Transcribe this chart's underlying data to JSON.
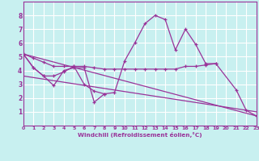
{
  "bg_color": "#c8f0f0",
  "grid_color": "#ffffff",
  "line_color": "#993399",
  "xlabel": "Windchill (Refroidissement éolien,°C)",
  "xlim": [
    0,
    23
  ],
  "ylim": [
    0,
    9
  ],
  "xticks": [
    0,
    1,
    2,
    3,
    4,
    5,
    6,
    7,
    8,
    9,
    10,
    11,
    12,
    13,
    14,
    15,
    16,
    17,
    18,
    19,
    20,
    21,
    22,
    23
  ],
  "yticks": [
    1,
    2,
    3,
    4,
    5,
    6,
    7,
    8
  ],
  "series": [
    {
      "x": [
        0,
        1,
        2,
        3,
        4,
        5,
        6,
        7,
        8,
        9,
        10,
        11,
        12,
        13,
        14,
        15,
        16,
        17,
        18,
        19,
        21,
        22,
        23
      ],
      "y": [
        5.2,
        4.2,
        3.6,
        2.9,
        4.0,
        4.2,
        4.2,
        1.7,
        2.3,
        2.4,
        4.7,
        6.0,
        7.4,
        8.0,
        7.7,
        5.5,
        7.0,
        5.9,
        4.5,
        4.5,
        2.6,
        1.1,
        0.7
      ],
      "markers": true
    },
    {
      "x": [
        0,
        1,
        2,
        3,
        4,
        5,
        6,
        7,
        8
      ],
      "y": [
        5.2,
        4.2,
        3.6,
        3.6,
        3.9,
        4.3,
        3.0,
        2.5,
        2.3
      ],
      "markers": true
    },
    {
      "x": [
        0,
        1,
        2,
        3,
        4,
        5,
        6,
        7,
        8,
        9,
        10,
        11,
        12,
        13,
        14,
        15,
        16,
        17,
        18,
        19
      ],
      "y": [
        5.2,
        4.9,
        4.6,
        4.3,
        4.3,
        4.3,
        4.3,
        4.2,
        4.1,
        4.1,
        4.1,
        4.1,
        4.1,
        4.1,
        4.1,
        4.1,
        4.3,
        4.3,
        4.4,
        4.5
      ],
      "markers": true
    },
    {
      "x": [
        0,
        23
      ],
      "y": [
        5.2,
        0.7
      ],
      "markers": false
    },
    {
      "x": [
        0,
        23
      ],
      "y": [
        3.6,
        1.0
      ],
      "markers": false
    }
  ]
}
